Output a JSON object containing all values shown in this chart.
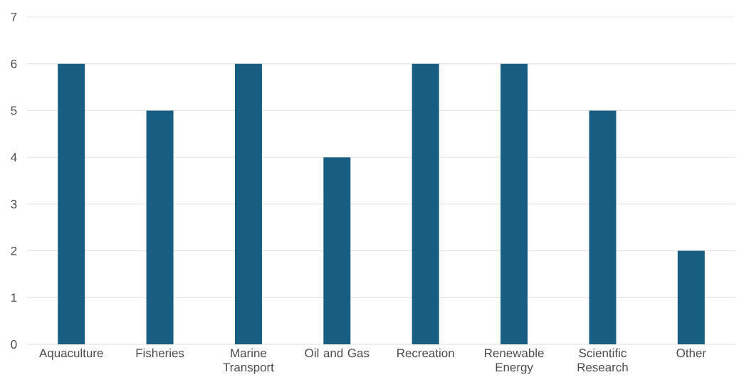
{
  "chart_data": {
    "type": "bar",
    "categories": [
      "Aquaculture",
      "Fisheries",
      "Marine Transport",
      "Oil and Gas",
      "Recreation",
      "Renewable Energy",
      "Scientific Research",
      "Other"
    ],
    "values": [
      6,
      5,
      6,
      4,
      6,
      6,
      5,
      2
    ],
    "color": "#175e82",
    "ylim": [
      0,
      7
    ],
    "yticks": [
      0,
      1,
      2,
      3,
      4,
      5,
      6,
      7
    ],
    "grid": "y"
  }
}
